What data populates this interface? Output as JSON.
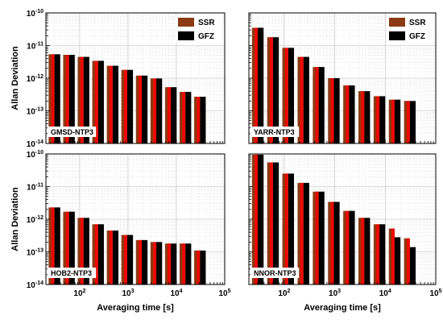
{
  "colors": {
    "SSR": "#8b3a12",
    "GFZ": "#000000",
    "overlay": "#ff0000"
  },
  "chart_data": [
    {
      "type": "bar",
      "station": "GMSD-NTP3",
      "x_scale": "log",
      "y_scale": "log",
      "xlim": [
        20,
        100000
      ],
      "ylim": [
        1e-14,
        1e-10
      ],
      "x_ticks": [
        "10^2",
        "10^3",
        "10^4",
        "10^5"
      ],
      "y_ticks": [
        "10^-14",
        "10^-13",
        "10^-12",
        "10^-11",
        "10^-10"
      ],
      "show_x_ticks": false,
      "show_y_ticks": true,
      "xlabel": "",
      "ylabel": "Allan Deviation",
      "legend": [
        "SSR",
        "GFZ"
      ],
      "legend_position": "top-right",
      "grid": true,
      "x": [
        30,
        60,
        120,
        240,
        480,
        960,
        1920,
        3840,
        7680,
        15360,
        30720
      ],
      "series": [
        {
          "name": "SSR",
          "values": [
            5.4e-12,
            5.2e-12,
            4.5e-12,
            3.4e-12,
            2.4e-12,
            1.8e-12,
            1.2e-12,
            9.8e-13,
            5.3e-13,
            3.8e-13,
            2.7e-13
          ]
        },
        {
          "name": "GFZ",
          "values": [
            5.4e-12,
            5.2e-12,
            4.5e-12,
            3.4e-12,
            2.4e-12,
            1.8e-12,
            1.2e-12,
            9.8e-13,
            5.3e-13,
            3.8e-13,
            2.7e-13
          ]
        }
      ]
    },
    {
      "type": "bar",
      "station": "YARR-NTP3",
      "x_scale": "log",
      "y_scale": "log",
      "xlim": [
        20,
        100000
      ],
      "ylim": [
        1e-14,
        1e-10
      ],
      "x_ticks": [
        "10^2",
        "10^3",
        "10^4",
        "10^5"
      ],
      "y_ticks": [
        "10^-14",
        "10^-13",
        "10^-12",
        "10^-11",
        "10^-10"
      ],
      "show_x_ticks": false,
      "show_y_ticks": false,
      "xlabel": "",
      "ylabel": "",
      "legend": [
        "SSR",
        "GFZ"
      ],
      "legend_position": "top-right",
      "grid": true,
      "x": [
        30,
        60,
        120,
        240,
        480,
        960,
        1920,
        3840,
        7680,
        15360,
        30720
      ],
      "series": [
        {
          "name": "SSR",
          "values": [
            3.5e-11,
            1.8e-11,
            8.5e-12,
            4.5e-12,
            2.2e-12,
            1e-12,
            6e-13,
            4e-13,
            2.8e-13,
            2.2e-13,
            2e-13
          ]
        },
        {
          "name": "GFZ",
          "values": [
            3.5e-11,
            1.8e-11,
            8.5e-12,
            4.5e-12,
            2.2e-12,
            1e-12,
            6e-13,
            4e-13,
            2.8e-13,
            2.2e-13,
            2e-13
          ]
        }
      ]
    },
    {
      "type": "bar",
      "station": "HOB2-NTP3",
      "x_scale": "log",
      "y_scale": "log",
      "xlim": [
        20,
        100000
      ],
      "ylim": [
        1e-14,
        1e-10
      ],
      "x_ticks": [
        "10^2",
        "10^3",
        "10^4",
        "10^5"
      ],
      "y_ticks": [
        "10^-14",
        "10^-13",
        "10^-12",
        "10^-11",
        "10^-10"
      ],
      "show_x_ticks": true,
      "show_y_ticks": true,
      "xlabel": "Averaging time [s]",
      "ylabel": "Allan Deviation",
      "legend": [],
      "legend_position": "",
      "grid": true,
      "x": [
        30,
        60,
        120,
        240,
        480,
        960,
        1920,
        3840,
        7680,
        15360,
        30720
      ],
      "series": [
        {
          "name": "SSR",
          "values": [
            2.3e-12,
            1.7e-12,
            1.1e-12,
            7e-13,
            4.5e-13,
            3.3e-13,
            2.3e-13,
            2e-13,
            1.8e-13,
            1.8e-13,
            1.1e-13
          ]
        },
        {
          "name": "GFZ",
          "values": [
            2.3e-12,
            1.7e-12,
            1.1e-12,
            7e-13,
            4.5e-13,
            3.3e-13,
            2.3e-13,
            2e-13,
            1.8e-13,
            1.8e-13,
            1.1e-13
          ]
        }
      ]
    },
    {
      "type": "bar",
      "station": "NNOR-NTP3",
      "x_scale": "log",
      "y_scale": "log",
      "xlim": [
        20,
        100000
      ],
      "ylim": [
        1e-14,
        1e-10
      ],
      "x_ticks": [
        "10^2",
        "10^3",
        "10^4",
        "10^5"
      ],
      "y_ticks": [
        "10^-14",
        "10^-13",
        "10^-12",
        "10^-11",
        "10^-10"
      ],
      "show_x_ticks": true,
      "show_y_ticks": false,
      "xlabel": "Averaging time [s]",
      "ylabel": "",
      "legend": [],
      "legend_position": "",
      "grid": true,
      "x": [
        30,
        60,
        120,
        240,
        480,
        960,
        1920,
        3840,
        7680,
        15360,
        30720
      ],
      "series": [
        {
          "name": "SSR",
          "values": [
            9.5e-11,
            5.5e-11,
            2.5e-11,
            1.3e-11,
            7e-12,
            3.4e-12,
            1.8e-12,
            1.1e-12,
            7e-13,
            5.2e-13,
            2.6e-13
          ]
        },
        {
          "name": "GFZ",
          "values": [
            9.5e-11,
            5.5e-11,
            2.5e-11,
            1.3e-11,
            7e-12,
            3.4e-12,
            1.8e-12,
            1.1e-12,
            7e-13,
            2.8e-13,
            1.4e-13
          ]
        }
      ]
    }
  ]
}
